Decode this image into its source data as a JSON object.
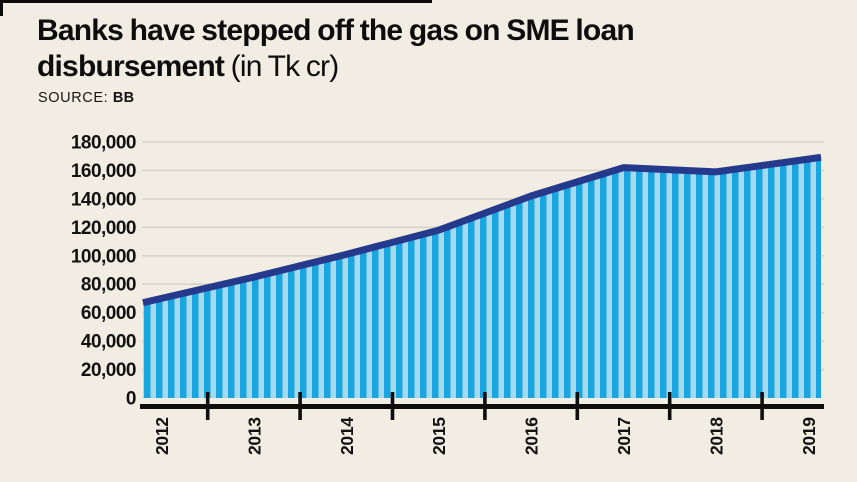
{
  "header": {
    "title_line1": "Banks have stepped off the gas on SME loan",
    "title_line2_bold": "disbursement",
    "title_line2_normal": " (in Tk cr)",
    "source_label": "SOURCE:",
    "source_value": "BB"
  },
  "chart_data": {
    "type": "area",
    "title": "Banks have stepped off the gas on SME loan disbursement",
    "unit": "Tk cr",
    "source": "BB",
    "categories": [
      "2012",
      "2013",
      "2014",
      "2015",
      "2016",
      "2017",
      "2018",
      "2019"
    ],
    "series": [
      {
        "name": "SME loan disbursement (Tk cr)",
        "values": [
          70000,
          85000,
          101000,
          118000,
          142000,
          162000,
          159000,
          168000
        ]
      }
    ],
    "xlabel": "",
    "ylabel": "",
    "ylim": [
      0,
      180000
    ],
    "ytick_step": 20000,
    "ytick_labels": [
      "0",
      "20,000",
      "40,000",
      "60,000",
      "80,000",
      "100,000",
      "120,000",
      "140,000",
      "160,000",
      "180,000"
    ],
    "grid": true,
    "legend": "none",
    "colors": {
      "background": "#f1ede2",
      "stripe_cyan": "#19a5e0",
      "stripe_pale": "#a6d9ee",
      "line_navy": "#253a8c",
      "gridline": "#d8d3c6",
      "axis_black": "#0e0e0e",
      "text": "#121212"
    }
  }
}
